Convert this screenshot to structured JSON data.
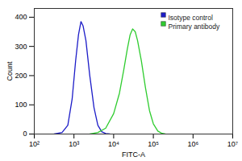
{
  "chart_data": {
    "type": "line",
    "x_label": "FITC-A",
    "y_label": "Count",
    "log": "x",
    "xlim": [
      100,
      10000000
    ],
    "xticks": [
      {
        "value": 100,
        "label": "10²"
      },
      {
        "value": 1000,
        "label": "10³"
      },
      {
        "value": 10000,
        "label": "10⁴"
      },
      {
        "value": 100000,
        "label": "10⁵"
      },
      {
        "value": 1000000,
        "label": "10⁶"
      },
      {
        "value": 10000000,
        "label": "10⁷"
      }
    ],
    "ylim": [
      0,
      430
    ],
    "yticks": [
      0,
      100,
      200,
      300,
      400
    ],
    "legend": "top-right",
    "series": [
      {
        "name": "Isotype control",
        "color": "#1c1cc8",
        "x": [
          316,
          500,
          700,
          900,
          1100,
          1300,
          1500,
          1700,
          2000,
          2500,
          3200,
          4000,
          5000,
          6300,
          8000
        ],
        "values": [
          0,
          5,
          30,
          120,
          250,
          340,
          385,
          370,
          320,
          200,
          90,
          30,
          8,
          2,
          0
        ]
      },
      {
        "name": "Primary antibody",
        "color": "#2fcc2f",
        "x": [
          2500,
          4000,
          6300,
          10000,
          14000,
          18000,
          22000,
          26000,
          30000,
          35000,
          40000,
          50000,
          63000,
          80000,
          100000,
          130000,
          160000,
          200000
        ],
        "values": [
          0,
          5,
          20,
          70,
          140,
          220,
          290,
          340,
          360,
          350,
          320,
          250,
          160,
          80,
          35,
          10,
          3,
          0
        ]
      }
    ]
  }
}
